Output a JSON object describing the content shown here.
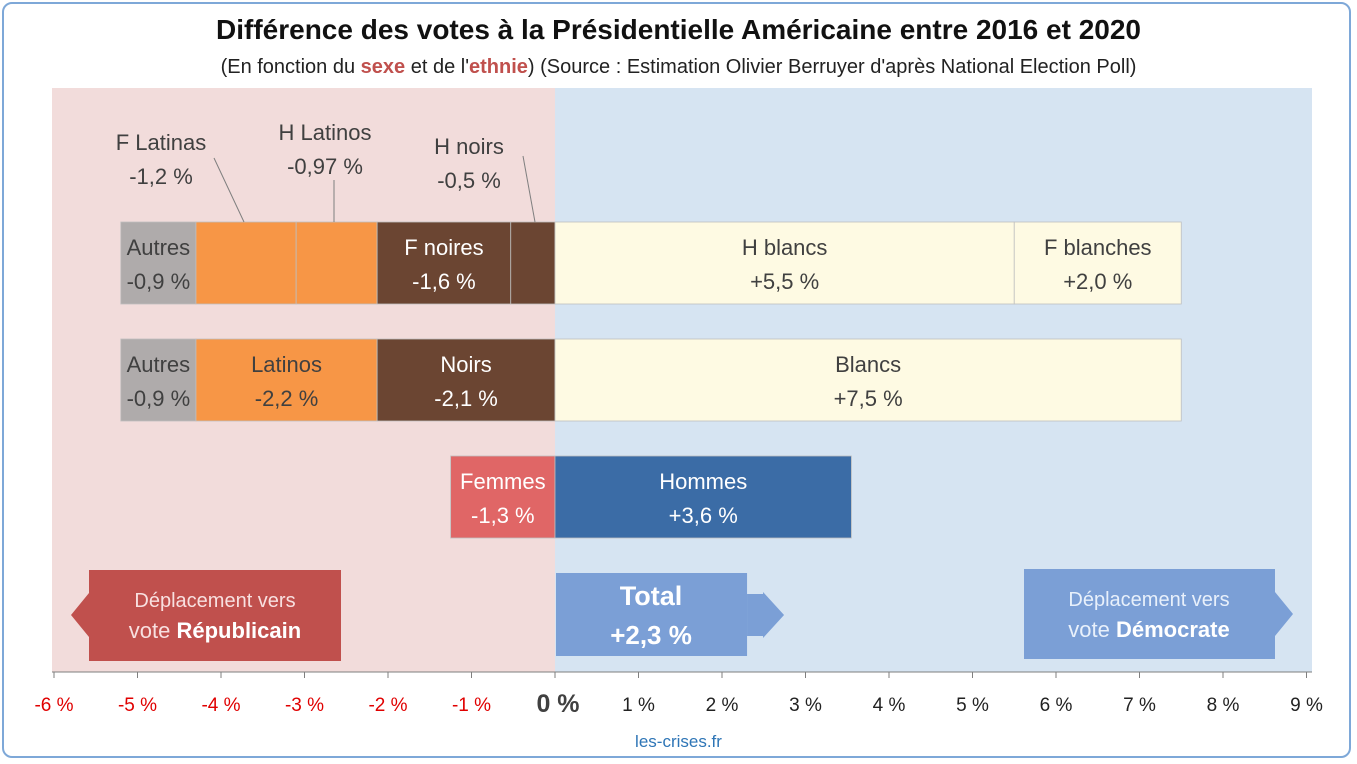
{
  "title": "Différence des votes à la Présidentielle Américaine entre 2016 et 2020",
  "subtitle": {
    "prefix": "(En fonction du ",
    "sexe": "sexe",
    "middle": " et de l'",
    "ethnie": "ethnie",
    "suffix": ") (Source : Estimation Olivier Berruyer d'après National Election Poll)"
  },
  "footer": "les-crises.fr",
  "colors": {
    "rep_zone": "#f2dcdb",
    "dem_zone": "#d6e4f2",
    "autres": "#afabab",
    "latinos": "#f79646",
    "noirs": "#6b4532",
    "blancs": "#fefae3",
    "femmes": "#e06666",
    "hommes": "#3b6ca6",
    "rep_box": "#c0504d",
    "dem_box": "#7b9fd6",
    "total_box": "#7b9fd6",
    "neg_tick": "#e00000",
    "pos_tick": "#222222"
  },
  "chart_data": {
    "type": "bar",
    "orientation": "horizontal-stacked",
    "xlim": [
      -6,
      9
    ],
    "x_ticks": [
      {
        "value": -6,
        "label": "-6 %"
      },
      {
        "value": -5,
        "label": "-5 %"
      },
      {
        "value": -4,
        "label": "-4 %"
      },
      {
        "value": -3,
        "label": "-3 %"
      },
      {
        "value": -2,
        "label": "-2 %"
      },
      {
        "value": -1,
        "label": "-1 %"
      },
      {
        "value": 0,
        "label": "0 %"
      },
      {
        "value": 1,
        "label": "1 %"
      },
      {
        "value": 2,
        "label": "2 %"
      },
      {
        "value": 3,
        "label": "3 %"
      },
      {
        "value": 4,
        "label": "4 %"
      },
      {
        "value": 5,
        "label": "5 %"
      },
      {
        "value": 6,
        "label": "6 %"
      },
      {
        "value": 7,
        "label": "7 %"
      },
      {
        "value": 8,
        "label": "8 %"
      },
      {
        "value": 9,
        "label": "9 %"
      }
    ],
    "rows": [
      {
        "name": "sexe-ethnie",
        "segments": [
          {
            "from": -5.2,
            "to": -4.3,
            "value": -0.9,
            "name": "Autres",
            "label": "-0,9 %",
            "color": "autres",
            "label_pos": "inside"
          },
          {
            "from": -4.3,
            "to": -3.1,
            "value": -1.2,
            "name": "F Latinas",
            "label": "-1,2 %",
            "color": "latinos",
            "label_pos": "callout"
          },
          {
            "from": -3.1,
            "to": -2.13,
            "value": -0.97,
            "name": "H Latinos",
            "label": "-0,97 %",
            "color": "latinos",
            "label_pos": "callout"
          },
          {
            "from": -2.13,
            "to": -0.53,
            "value": -1.6,
            "name": "F noires",
            "label": "-1,6 %",
            "color": "noirs",
            "label_pos": "inside"
          },
          {
            "from": -0.53,
            "to": 0,
            "value": -0.5,
            "name": "H noirs",
            "label": "-0,5 %",
            "color": "noirs",
            "label_pos": "callout"
          },
          {
            "from": 0,
            "to": 5.5,
            "value": 5.5,
            "name": "H blancs",
            "label": "+5,5 %",
            "color": "blancs",
            "label_pos": "inside"
          },
          {
            "from": 5.5,
            "to": 7.5,
            "value": 2.0,
            "name": "F blanches",
            "label": "+2,0 %",
            "color": "blancs",
            "label_pos": "inside"
          }
        ]
      },
      {
        "name": "ethnie",
        "segments": [
          {
            "from": -5.2,
            "to": -4.3,
            "value": -0.9,
            "name": "Autres",
            "label": "-0,9 %",
            "color": "autres",
            "label_pos": "inside"
          },
          {
            "from": -4.3,
            "to": -2.13,
            "value": -2.2,
            "name": "Latinos",
            "label": "-2,2 %",
            "color": "latinos",
            "label_pos": "inside"
          },
          {
            "from": -2.13,
            "to": 0,
            "value": -2.1,
            "name": "Noirs",
            "label": "-2,1 %",
            "color": "noirs",
            "label_pos": "inside"
          },
          {
            "from": 0,
            "to": 7.5,
            "value": 7.5,
            "name": "Blancs",
            "label": "+7,5 %",
            "color": "blancs",
            "label_pos": "inside"
          }
        ]
      },
      {
        "name": "sexe",
        "segments": [
          {
            "from": -1.25,
            "to": 0,
            "value": -1.3,
            "name": "Femmes",
            "label": "-1,3 %",
            "color": "femmes",
            "label_pos": "inside"
          },
          {
            "from": 0,
            "to": 3.55,
            "value": 3.6,
            "name": "Hommes",
            "label": "+3,6 %",
            "color": "hommes",
            "label_pos": "inside"
          }
        ]
      }
    ],
    "total": {
      "value": 2.3,
      "name": "Total",
      "label": "+2,3 %",
      "x_end": 2.3
    },
    "annotations": {
      "republican": {
        "line1": "Déplacement vers",
        "line2_prefix": "vote ",
        "line2_bold": "Républicain"
      },
      "democrat": {
        "line1": "Déplacement vers",
        "line2_prefix": "vote ",
        "line2_bold": "Démocrate"
      }
    }
  }
}
